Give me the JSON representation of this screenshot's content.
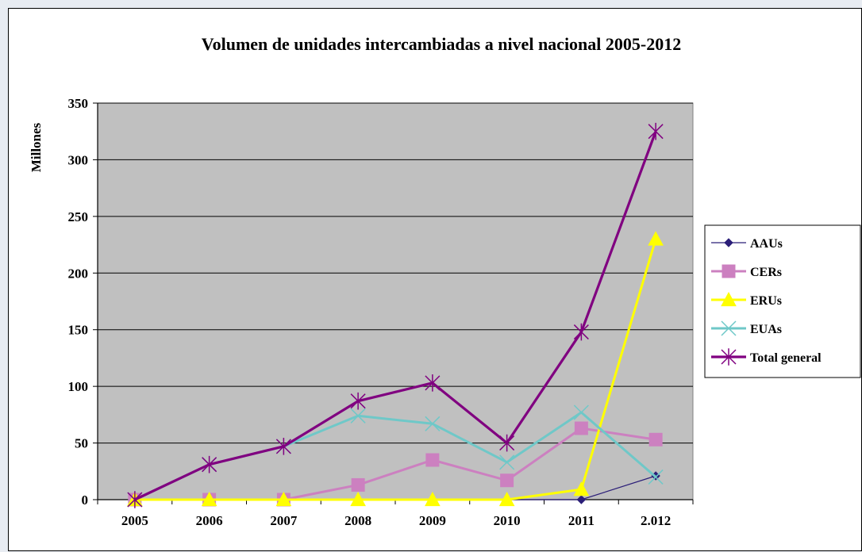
{
  "chart_data": {
    "type": "line",
    "title": "Volumen de unidades intercambiadas a nivel nacional 2005-2012",
    "ylabel": "Millones",
    "xlabel": "",
    "categories": [
      "2005",
      "2006",
      "2007",
      "2008",
      "2009",
      "2010",
      "2011",
      "2.012"
    ],
    "ylim": [
      0,
      350
    ],
    "yticks": [
      0,
      50,
      100,
      150,
      200,
      250,
      300,
      350
    ],
    "grid": true,
    "legend_position": "right",
    "plot_background": "#c0c0c0",
    "series": [
      {
        "name": "AAUs",
        "color": "#2b1e78",
        "marker": "diamond",
        "values": [
          0,
          0,
          0,
          0,
          0,
          0,
          0,
          21
        ]
      },
      {
        "name": "CERs",
        "color": "#cc80c0",
        "marker": "square",
        "values": [
          0,
          0,
          0,
          13,
          35,
          17,
          63,
          53
        ]
      },
      {
        "name": "ERUs",
        "color": "#ffff00",
        "marker": "triangle",
        "values": [
          0,
          0,
          0,
          0,
          0,
          0,
          9,
          230
        ]
      },
      {
        "name": "EUAs",
        "color": "#6fc8c8",
        "marker": "x",
        "values": [
          0,
          31,
          47,
          74,
          67,
          33,
          77,
          20
        ]
      },
      {
        "name": "Total general",
        "color": "#800080",
        "marker": "star",
        "values": [
          0,
          31,
          47,
          87,
          103,
          50,
          148,
          325
        ]
      }
    ]
  }
}
